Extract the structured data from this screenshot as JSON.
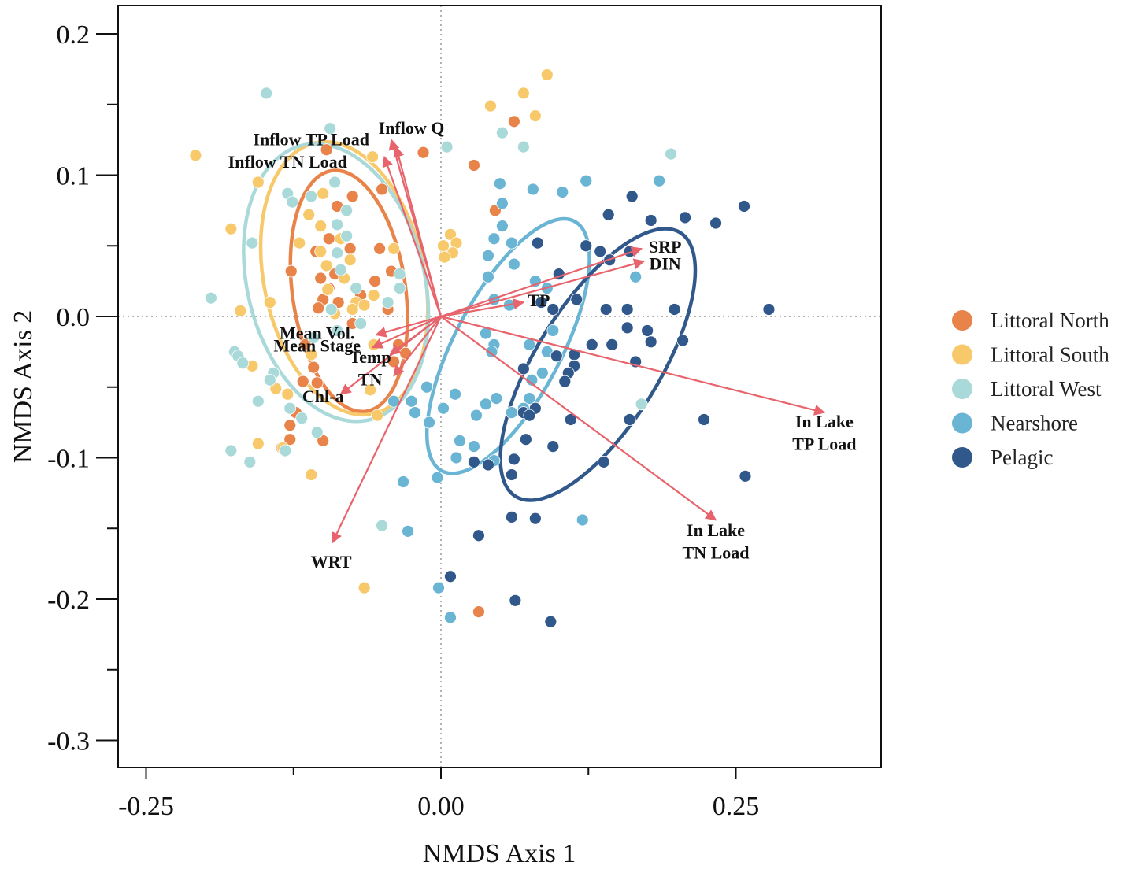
{
  "chart_data": {
    "type": "scatter",
    "title": "",
    "xlabel": "NMDS Axis 1",
    "ylabel": "NMDS Axis 2",
    "xlim": [
      -0.275,
      0.375
    ],
    "ylim": [
      -0.32,
      0.22
    ],
    "x_ticks": [
      -0.25,
      0.0,
      0.25
    ],
    "x_tick_labels": [
      "-0.25",
      "0.00",
      "0.25"
    ],
    "x_minor_ticks": [
      -0.125,
      0.125
    ],
    "y_ticks": [
      -0.3,
      -0.2,
      -0.1,
      0.0,
      0.1,
      0.2
    ],
    "y_tick_labels": [
      "-0.3",
      "-0.2",
      "-0.1",
      "0.0",
      "0.1",
      "0.2"
    ],
    "y_minor_ticks": [
      -0.25,
      -0.15,
      -0.05,
      0.05,
      0.15
    ],
    "reference_lines": {
      "x": 0,
      "y": 0,
      "style": "dotted"
    },
    "legend_position": "right",
    "colors": {
      "arrow": "#e8646c"
    },
    "series": [
      {
        "name": "Littoral North",
        "color": "#e8834a",
        "points": [
          [
            -0.097,
            0.118
          ],
          [
            -0.015,
            0.116
          ],
          [
            0.062,
            0.138
          ],
          [
            0.028,
            0.107
          ],
          [
            0.046,
            0.075
          ],
          [
            -0.05,
            0.09
          ],
          [
            -0.075,
            0.085
          ],
          [
            -0.088,
            0.078
          ],
          [
            -0.095,
            0.055
          ],
          [
            -0.106,
            0.046
          ],
          [
            -0.077,
            0.048
          ],
          [
            -0.052,
            0.048
          ],
          [
            -0.042,
            0.032
          ],
          [
            -0.09,
            0.03
          ],
          [
            -0.102,
            0.027
          ],
          [
            -0.127,
            0.032
          ],
          [
            -0.056,
            0.025
          ],
          [
            -0.068,
            0.015
          ],
          [
            -0.095,
            0.02
          ],
          [
            -0.1,
            0.012
          ],
          [
            -0.087,
            0.01
          ],
          [
            -0.104,
            0.006
          ],
          [
            -0.045,
            0.005
          ],
          [
            -0.075,
            -0.005
          ],
          [
            -0.115,
            -0.02
          ],
          [
            -0.108,
            -0.036
          ],
          [
            -0.117,
            -0.046
          ],
          [
            -0.105,
            -0.047
          ],
          [
            -0.123,
            -0.068
          ],
          [
            -0.128,
            -0.077
          ],
          [
            -0.128,
            -0.087
          ],
          [
            -0.135,
            -0.093
          ],
          [
            -0.1,
            -0.088
          ],
          [
            -0.036,
            -0.02
          ],
          [
            -0.03,
            -0.026
          ],
          [
            -0.04,
            -0.032
          ],
          [
            0.032,
            -0.209
          ]
        ]
      },
      {
        "name": "Littoral South",
        "color": "#f7c96a",
        "points": [
          [
            -0.208,
            0.114
          ],
          [
            -0.155,
            0.095
          ],
          [
            -0.178,
            0.062
          ],
          [
            -0.04,
            0.048
          ],
          [
            -0.058,
            0.113
          ],
          [
            0.09,
            0.171
          ],
          [
            0.042,
            0.149
          ],
          [
            0.07,
            0.158
          ],
          [
            0.08,
            0.142
          ],
          [
            -0.1,
            0.087
          ],
          [
            -0.112,
            0.072
          ],
          [
            -0.102,
            0.064
          ],
          [
            -0.12,
            0.052
          ],
          [
            -0.102,
            0.046
          ],
          [
            -0.085,
            0.055
          ],
          [
            -0.077,
            0.04
          ],
          [
            -0.097,
            0.036
          ],
          [
            -0.082,
            0.027
          ],
          [
            -0.096,
            0.019
          ],
          [
            -0.057,
            0.015
          ],
          [
            -0.072,
            0.01
          ],
          [
            -0.065,
            0.008
          ],
          [
            -0.075,
            0.005
          ],
          [
            -0.09,
            0.002
          ],
          [
            -0.057,
            -0.02
          ],
          [
            -0.11,
            -0.027
          ],
          [
            -0.14,
            -0.051
          ],
          [
            -0.13,
            -0.055
          ],
          [
            -0.16,
            -0.035
          ],
          [
            -0.06,
            -0.052
          ],
          [
            -0.17,
            0.004
          ],
          [
            -0.145,
            0.01
          ],
          [
            -0.155,
            -0.09
          ],
          [
            -0.134,
            -0.093
          ],
          [
            -0.11,
            -0.112
          ],
          [
            -0.065,
            -0.192
          ],
          [
            -0.054,
            -0.07
          ],
          [
            0.002,
            0.05
          ],
          [
            0.008,
            0.058
          ],
          [
            0.013,
            0.052
          ],
          [
            0.01,
            0.045
          ],
          [
            0.003,
            0.042
          ]
        ]
      },
      {
        "name": "Littoral West",
        "color": "#a9d9d8",
        "points": [
          [
            -0.148,
            0.158
          ],
          [
            -0.094,
            0.133
          ],
          [
            -0.13,
            0.087
          ],
          [
            -0.126,
            0.081
          ],
          [
            -0.11,
            0.085
          ],
          [
            -0.09,
            0.095
          ],
          [
            -0.08,
            0.075
          ],
          [
            -0.088,
            0.065
          ],
          [
            -0.08,
            0.057
          ],
          [
            -0.16,
            0.052
          ],
          [
            -0.088,
            0.045
          ],
          [
            -0.195,
            0.013
          ],
          [
            -0.085,
            0.033
          ],
          [
            -0.072,
            0.02
          ],
          [
            -0.045,
            0.01
          ],
          [
            -0.068,
            -0.005
          ],
          [
            -0.093,
            0.005
          ],
          [
            -0.088,
            -0.01
          ],
          [
            -0.108,
            -0.015
          ],
          [
            -0.175,
            -0.025
          ],
          [
            -0.172,
            -0.028
          ],
          [
            -0.168,
            -0.033
          ],
          [
            -0.142,
            -0.04
          ],
          [
            -0.145,
            -0.045
          ],
          [
            -0.155,
            -0.06
          ],
          [
            -0.128,
            -0.065
          ],
          [
            -0.118,
            -0.072
          ],
          [
            -0.105,
            -0.082
          ],
          [
            -0.178,
            -0.095
          ],
          [
            -0.162,
            -0.103
          ],
          [
            -0.132,
            -0.095
          ],
          [
            -0.05,
            -0.148
          ],
          [
            -0.035,
            0.03
          ],
          [
            -0.035,
            0.02
          ],
          [
            0.005,
            0.12
          ],
          [
            0.052,
            0.13
          ],
          [
            0.07,
            0.12
          ],
          [
            0.195,
            0.115
          ],
          [
            0.17,
            -0.062
          ]
        ]
      },
      {
        "name": "Nearshore",
        "color": "#6ab4d4",
        "points": [
          [
            0.05,
            0.094
          ],
          [
            0.078,
            0.09
          ],
          [
            0.103,
            0.088
          ],
          [
            0.123,
            0.096
          ],
          [
            0.052,
            0.08
          ],
          [
            0.052,
            0.064
          ],
          [
            0.045,
            0.055
          ],
          [
            0.06,
            0.052
          ],
          [
            0.04,
            0.043
          ],
          [
            0.062,
            0.037
          ],
          [
            0.04,
            0.028
          ],
          [
            0.08,
            0.025
          ],
          [
            0.09,
            0.02
          ],
          [
            0.045,
            0.012
          ],
          [
            0.058,
            0.008
          ],
          [
            0.085,
            0.01
          ],
          [
            0.038,
            -0.012
          ],
          [
            0.045,
            -0.02
          ],
          [
            0.043,
            -0.025
          ],
          [
            0.075,
            -0.02
          ],
          [
            0.095,
            -0.01
          ],
          [
            0.09,
            -0.025
          ],
          [
            0.086,
            -0.04
          ],
          [
            0.077,
            -0.045
          ],
          [
            -0.012,
            -0.05
          ],
          [
            0.012,
            -0.055
          ],
          [
            -0.04,
            -0.06
          ],
          [
            -0.025,
            -0.06
          ],
          [
            0.002,
            -0.065
          ],
          [
            -0.022,
            -0.068
          ],
          [
            -0.01,
            -0.075
          ],
          [
            0.038,
            -0.062
          ],
          [
            0.047,
            -0.058
          ],
          [
            0.03,
            -0.07
          ],
          [
            0.06,
            -0.068
          ],
          [
            0.075,
            -0.058
          ],
          [
            0.07,
            -0.065
          ],
          [
            0.016,
            -0.088
          ],
          [
            0.028,
            -0.092
          ],
          [
            0.013,
            -0.1
          ],
          [
            0.045,
            -0.102
          ],
          [
            -0.032,
            -0.117
          ],
          [
            -0.003,
            -0.114
          ],
          [
            -0.028,
            -0.152
          ],
          [
            -0.002,
            -0.192
          ],
          [
            0.008,
            -0.213
          ],
          [
            0.12,
            -0.144
          ],
          [
            0.185,
            0.096
          ],
          [
            0.165,
            0.028
          ]
        ]
      },
      {
        "name": "Pelagic",
        "color": "#31588a",
        "points": [
          [
            0.082,
            0.052
          ],
          [
            0.123,
            0.05
          ],
          [
            0.135,
            0.046
          ],
          [
            0.16,
            0.046
          ],
          [
            0.143,
            0.04
          ],
          [
            0.1,
            0.03
          ],
          [
            0.115,
            0.012
          ],
          [
            0.085,
            0.01
          ],
          [
            0.095,
            0.005
          ],
          [
            0.14,
            0.005
          ],
          [
            0.158,
            0.005
          ],
          [
            0.198,
            0.005
          ],
          [
            0.278,
            0.005
          ],
          [
            0.158,
            -0.008
          ],
          [
            0.175,
            -0.01
          ],
          [
            0.178,
            -0.018
          ],
          [
            0.205,
            -0.017
          ],
          [
            0.128,
            -0.02
          ],
          [
            0.145,
            -0.02
          ],
          [
            0.098,
            -0.028
          ],
          [
            0.113,
            -0.027
          ],
          [
            0.113,
            -0.035
          ],
          [
            0.165,
            -0.032
          ],
          [
            0.07,
            -0.037
          ],
          [
            0.108,
            -0.04
          ],
          [
            0.105,
            -0.046
          ],
          [
            0.08,
            -0.065
          ],
          [
            0.07,
            -0.068
          ],
          [
            0.075,
            -0.07
          ],
          [
            0.11,
            -0.073
          ],
          [
            0.16,
            -0.073
          ],
          [
            0.223,
            -0.073
          ],
          [
            0.072,
            -0.087
          ],
          [
            0.095,
            -0.092
          ],
          [
            0.062,
            -0.101
          ],
          [
            0.028,
            -0.103
          ],
          [
            0.04,
            -0.105
          ],
          [
            0.06,
            -0.112
          ],
          [
            0.138,
            -0.103
          ],
          [
            0.258,
            -0.113
          ],
          [
            0.08,
            -0.143
          ],
          [
            0.06,
            -0.142
          ],
          [
            0.032,
            -0.155
          ],
          [
            0.008,
            -0.184
          ],
          [
            0.063,
            -0.201
          ],
          [
            0.093,
            -0.216
          ],
          [
            0.142,
            0.072
          ],
          [
            0.162,
            0.085
          ],
          [
            0.178,
            0.068
          ],
          [
            0.207,
            0.07
          ],
          [
            0.233,
            0.066
          ],
          [
            0.257,
            0.078
          ]
        ]
      }
    ],
    "ellipses": [
      {
        "group": "Littoral North",
        "color": "#e8834a",
        "cx": -0.078,
        "cy": 0.018,
        "rx": 0.048,
        "ry": 0.086,
        "angle_deg": -8
      },
      {
        "group": "Littoral South",
        "color": "#f7c96a",
        "cx": -0.082,
        "cy": 0.027,
        "rx": 0.068,
        "ry": 0.098,
        "angle_deg": -12
      },
      {
        "group": "Littoral West",
        "color": "#a9d9d8",
        "cx": -0.089,
        "cy": 0.024,
        "rx": 0.075,
        "ry": 0.1,
        "angle_deg": -14
      },
      {
        "group": "Nearshore",
        "color": "#6ab4d4",
        "cx": 0.057,
        "cy": -0.021,
        "rx": 0.045,
        "ry": 0.1,
        "angle_deg": 28
      },
      {
        "group": "Pelagic",
        "color": "#31588a",
        "cx": 0.133,
        "cy": -0.034,
        "rx": 0.052,
        "ry": 0.11,
        "angle_deg": 32
      }
    ],
    "vectors": [
      {
        "label": "Inflow Q",
        "x": -0.042,
        "y": 0.125,
        "label_x": -0.025,
        "label_y": 0.132
      },
      {
        "label": "Inflow TP Load",
        "x": -0.038,
        "y": 0.12,
        "label_x": -0.11,
        "label_y": 0.124
      },
      {
        "label": "Inflow TN Load",
        "x": -0.048,
        "y": 0.113,
        "label_x": -0.13,
        "label_y": 0.108
      },
      {
        "label": "SRP",
        "x": 0.17,
        "y": 0.048,
        "label_x": 0.19,
        "label_y": 0.048
      },
      {
        "label": "DIN",
        "x": 0.172,
        "y": 0.039,
        "label_x": 0.19,
        "label_y": 0.036
      },
      {
        "label": "TP",
        "x": 0.07,
        "y": 0.01,
        "label_x": 0.083,
        "label_y": 0.01
      },
      {
        "label": "Mean Vol.",
        "x": -0.055,
        "y": -0.013,
        "label_x": -0.105,
        "label_y": -0.013
      },
      {
        "label": "Mean Stage",
        "x": -0.058,
        "y": -0.022,
        "label_x": -0.105,
        "label_y": -0.022
      },
      {
        "label": "Temp",
        "x": -0.043,
        "y": -0.027,
        "label_x": -0.06,
        "label_y": -0.03
      },
      {
        "label": "TN",
        "x": -0.04,
        "y": -0.042,
        "label_x": -0.06,
        "label_y": -0.046
      },
      {
        "label": "Chl-a",
        "x": -0.085,
        "y": -0.055,
        "label_x": -0.1,
        "label_y": -0.058
      },
      {
        "label": "WRT",
        "x": -0.092,
        "y": -0.16,
        "label_x": -0.093,
        "label_y": -0.175
      },
      {
        "label": "In Lake\nTP Load",
        "x": 0.325,
        "y": -0.068,
        "label_x": 0.325,
        "label_y": -0.08
      },
      {
        "label": "In Lake\nTN Load",
        "x": 0.233,
        "y": -0.144,
        "label_x": 0.233,
        "label_y": -0.157
      }
    ]
  }
}
